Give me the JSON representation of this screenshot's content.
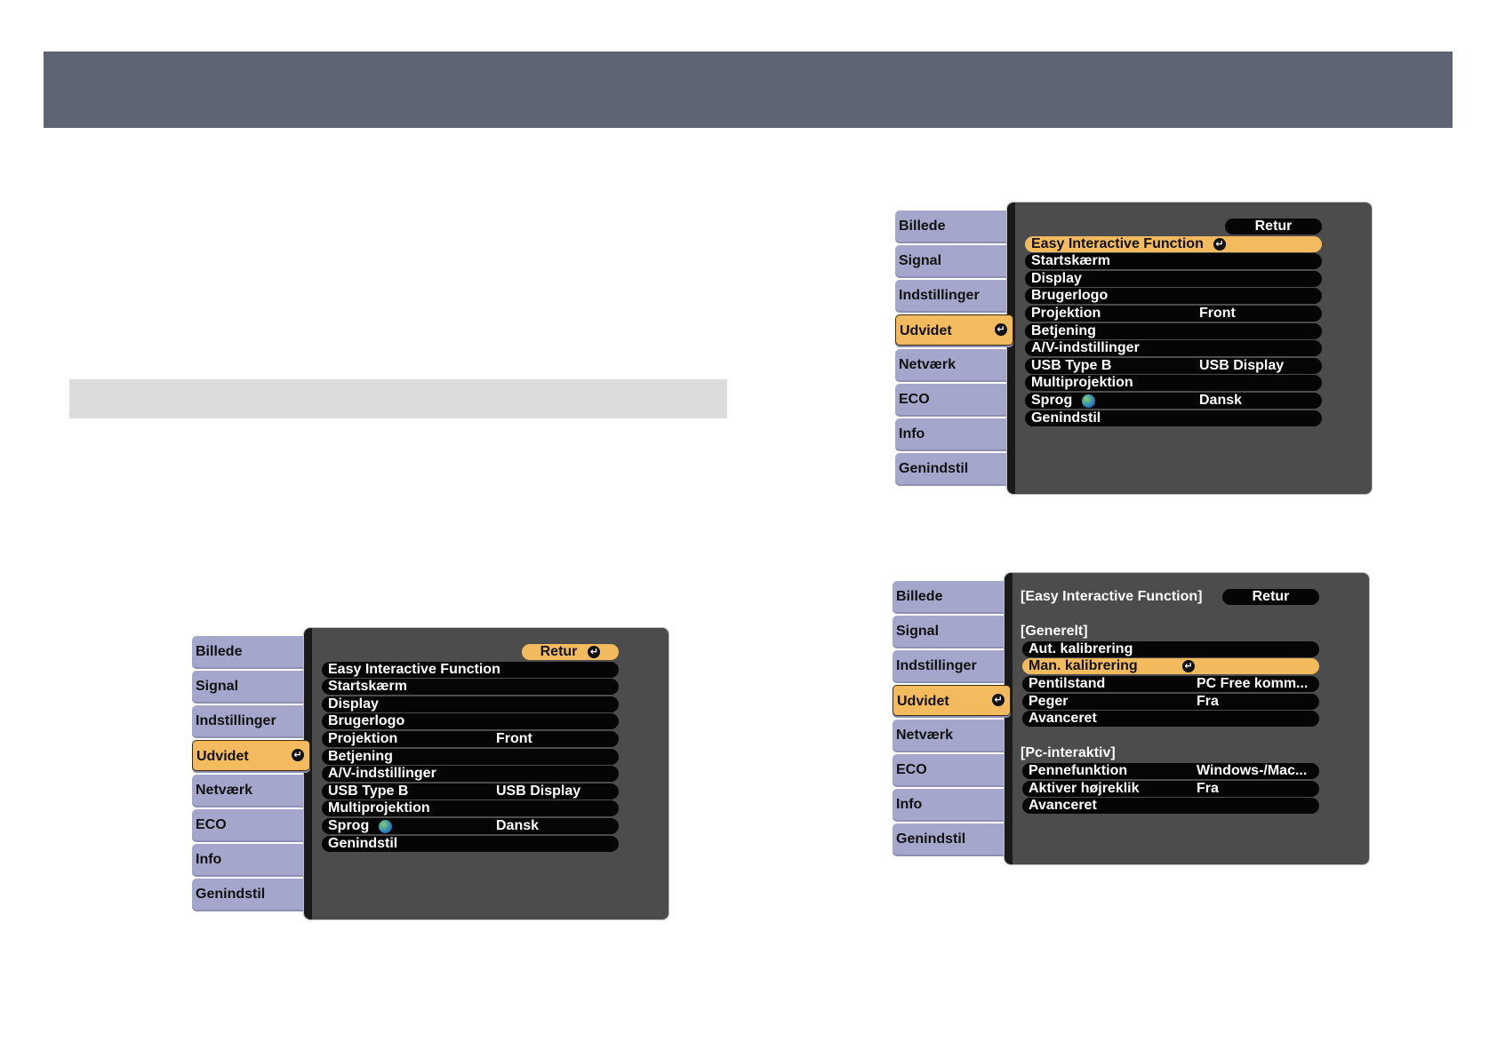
{
  "colors": {
    "header_bar": "#5f6475",
    "tab": "#a4a6cb",
    "selected": "#f3bb5e",
    "panel": "#4c4c4c",
    "row": "#050505"
  },
  "menus": [
    {
      "id": "menu-extended-retur",
      "tabs": [
        "Billede",
        "Signal",
        "Indstillinger",
        "Udvidet",
        "Netværk",
        "ECO",
        "Info",
        "Genindstil"
      ],
      "selected_tab": 3,
      "retur": {
        "label": "Retur",
        "highlighted": true
      },
      "lines": [
        {
          "type": "retur"
        },
        {
          "type": "item",
          "label": "Easy Interactive Function"
        },
        {
          "type": "item",
          "label": "Startskærm"
        },
        {
          "type": "item",
          "label": "Display"
        },
        {
          "type": "item",
          "label": "Brugerlogo"
        },
        {
          "type": "item",
          "label": "Projektion",
          "value": "Front"
        },
        {
          "type": "item",
          "label": "Betjening"
        },
        {
          "type": "item",
          "label": "A/V-indstillinger"
        },
        {
          "type": "item",
          "label": "USB Type B",
          "value": "USB Display"
        },
        {
          "type": "item",
          "label": "Multiprojektion"
        },
        {
          "type": "item",
          "label": "Sprog",
          "icon": "globe-icon",
          "value": "Dansk"
        },
        {
          "type": "item",
          "label": "Genindstil"
        }
      ]
    },
    {
      "id": "menu-extended-eif",
      "tabs": [
        "Billede",
        "Signal",
        "Indstillinger",
        "Udvidet",
        "Netværk",
        "ECO",
        "Info",
        "Genindstil"
      ],
      "selected_tab": 3,
      "retur": {
        "label": "Retur",
        "highlighted": false
      },
      "lines": [
        {
          "type": "retur"
        },
        {
          "type": "item",
          "label": "Easy Interactive Function",
          "highlighted": true
        },
        {
          "type": "item",
          "label": "Startskærm"
        },
        {
          "type": "item",
          "label": "Display"
        },
        {
          "type": "item",
          "label": "Brugerlogo"
        },
        {
          "type": "item",
          "label": "Projektion",
          "value": "Front"
        },
        {
          "type": "item",
          "label": "Betjening"
        },
        {
          "type": "item",
          "label": "A/V-indstillinger"
        },
        {
          "type": "item",
          "label": "USB Type B",
          "value": "USB Display"
        },
        {
          "type": "item",
          "label": "Multiprojektion"
        },
        {
          "type": "item",
          "label": "Sprog",
          "icon": "globe-icon",
          "value": "Dansk"
        },
        {
          "type": "item",
          "label": "Genindstil"
        }
      ]
    },
    {
      "id": "menu-eif-submenu",
      "tabs": [
        "Billede",
        "Signal",
        "Indstillinger",
        "Udvidet",
        "Netværk",
        "ECO",
        "Info",
        "Genindstil"
      ],
      "selected_tab": 3,
      "title": "[Easy Interactive Function]",
      "retur": {
        "label": "Retur",
        "highlighted": false
      },
      "lines": [
        {
          "type": "retur"
        },
        {
          "type": "blank"
        },
        {
          "type": "header",
          "label": "[Generelt]"
        },
        {
          "type": "item",
          "label": "Aut. kalibrering"
        },
        {
          "type": "item",
          "label": "Man. kalibrering",
          "highlighted": true
        },
        {
          "type": "item",
          "label": "Pentilstand",
          "value": "PC Free komm..."
        },
        {
          "type": "item",
          "label": "Peger",
          "value": "Fra"
        },
        {
          "type": "item",
          "label": "Avanceret"
        },
        {
          "type": "blank"
        },
        {
          "type": "header",
          "label": "[Pc-interaktiv]"
        },
        {
          "type": "item",
          "label": "Pennefunktion",
          "value": "Windows-/Mac..."
        },
        {
          "type": "item",
          "label": "Aktiver højreklik",
          "value": "Fra"
        },
        {
          "type": "item",
          "label": "Avanceret"
        }
      ]
    }
  ]
}
